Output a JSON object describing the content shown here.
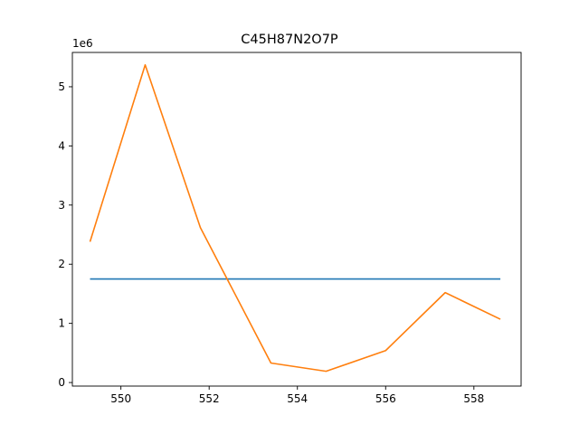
{
  "chart_data": {
    "type": "line",
    "title": "C45H87N2O7P",
    "xlabel": "",
    "ylabel": "",
    "y_offset_label": "1e6",
    "xlim": [
      548.9,
      559.07
    ],
    "ylim": [
      -0.06,
      5.58
    ],
    "x_ticks": [
      550,
      552,
      554,
      556,
      558
    ],
    "y_ticks": [
      0,
      1,
      2,
      3,
      4,
      5
    ],
    "grid": false,
    "series": [
      {
        "color": "#1f77b4",
        "x": [
          549.3,
          558.6
        ],
        "y": [
          1.75,
          1.75
        ]
      },
      {
        "color": "#ff7f0e",
        "x": [
          549.3,
          550.55,
          551.8,
          553.4,
          554.65,
          556.0,
          557.35,
          558.6
        ],
        "y": [
          2.38,
          5.37,
          2.62,
          0.33,
          0.19,
          0.54,
          1.52,
          1.07
        ]
      }
    ]
  }
}
